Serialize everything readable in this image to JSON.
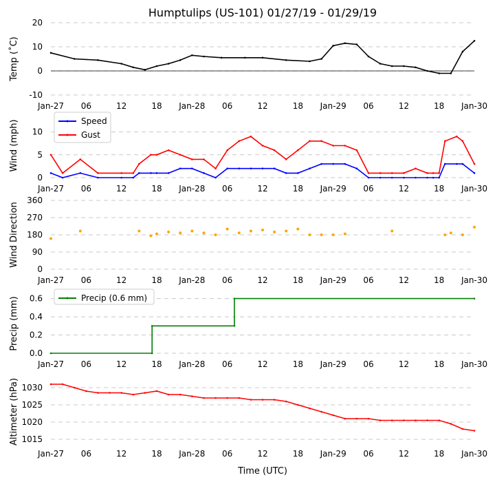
{
  "figure": {
    "title": "Humptulips (US-101) 01/27/19 - 01/29/19",
    "xlabel": "Time (UTC)"
  },
  "chart_data": [
    {
      "id": "temp",
      "type": "line",
      "ylabel": "Temp ($^\\circ$C)",
      "ylabel_display": "Temp (˚C)",
      "ylim": [
        -10,
        20
      ],
      "yticks": [
        -10,
        0,
        10,
        20
      ],
      "zero_line": true,
      "x_hours": [
        0,
        4,
        8,
        12,
        14,
        16,
        18,
        20,
        22,
        24,
        26,
        29,
        33,
        36,
        40,
        44,
        46,
        48,
        50,
        52,
        54,
        56,
        58,
        60,
        62,
        64,
        66,
        68,
        70,
        72
      ],
      "series": [
        {
          "name": "Temp",
          "color": "#000000",
          "values": [
            7.5,
            5.0,
            4.5,
            3.0,
            1.5,
            0.5,
            2.0,
            3.0,
            4.5,
            6.5,
            6.0,
            5.5,
            5.5,
            5.5,
            4.5,
            4.0,
            5.0,
            10.5,
            11.5,
            11.0,
            6.0,
            3.0,
            2.0,
            2.0,
            1.5,
            0.0,
            -1.0,
            -1.0,
            8.0,
            12.5
          ]
        }
      ]
    },
    {
      "id": "wind",
      "type": "line",
      "ylabel": "Wind (mph)",
      "ylim": [
        0,
        14
      ],
      "yticks": [
        0,
        5,
        10
      ],
      "legend": "top-left",
      "x_hours": [
        0,
        2,
        5,
        8,
        12,
        14,
        15,
        17,
        18,
        20,
        22,
        24,
        26,
        28,
        30,
        32,
        34,
        36,
        38,
        40,
        42,
        44,
        46,
        48,
        50,
        52,
        54,
        56,
        58,
        60,
        62,
        64,
        65,
        66,
        67,
        69,
        70,
        72
      ],
      "series": [
        {
          "name": "Speed",
          "color": "#0000ff",
          "values": [
            1,
            0,
            1,
            0,
            0,
            0,
            1,
            1,
            1,
            1,
            2,
            2,
            1,
            0,
            2,
            2,
            2,
            2,
            2,
            1,
            1,
            2,
            3,
            3,
            3,
            2,
            0,
            0,
            0,
            0,
            0,
            0,
            0,
            0,
            3,
            3,
            3,
            1
          ]
        },
        {
          "name": "Gust",
          "color": "#ff0000",
          "values": [
            5,
            1,
            4,
            1,
            1,
            1,
            3,
            5,
            5,
            6,
            5,
            4,
            4,
            2,
            6,
            8,
            9,
            7,
            6,
            4,
            6,
            8,
            8,
            7,
            7,
            6,
            1,
            1,
            1,
            1,
            2,
            1,
            1,
            1,
            8,
            9,
            8,
            3
          ]
        }
      ]
    },
    {
      "id": "direction",
      "type": "scatter",
      "ylabel": "Wind Direction",
      "ylim": [
        0,
        360
      ],
      "yticks": [
        0,
        90,
        180,
        270,
        360
      ],
      "x_hours": [
        0,
        5,
        15,
        17,
        18,
        20,
        22,
        24,
        26,
        28,
        30,
        32,
        34,
        36,
        38,
        40,
        42,
        44,
        46,
        48,
        50,
        58,
        67,
        68,
        70,
        72
      ],
      "series": [
        {
          "name": "Direction",
          "color": "#ffa500",
          "values": [
            160,
            200,
            200,
            175,
            185,
            195,
            190,
            200,
            190,
            180,
            210,
            190,
            200,
            205,
            195,
            200,
            210,
            180,
            180,
            180,
            185,
            200,
            180,
            190,
            180,
            220
          ]
        }
      ]
    },
    {
      "id": "precip",
      "type": "line",
      "ylabel": "Precip (mm)",
      "ylim": [
        0,
        0.65
      ],
      "yticks": [
        0.0,
        0.2,
        0.4,
        0.6
      ],
      "legend": "top-left",
      "x_hours": [
        0,
        17.2,
        17.2,
        31.2,
        31.2,
        72
      ],
      "series": [
        {
          "name": "Precip (0.6 mm)",
          "color": "#008000",
          "values": [
            0.0,
            0.0,
            0.3,
            0.3,
            0.6,
            0.6
          ]
        }
      ]
    },
    {
      "id": "altimeter",
      "type": "line",
      "ylabel": "Altimeter (hPa)",
      "ylim": [
        1014,
        1032
      ],
      "yticks": [
        1015,
        1020,
        1025,
        1030
      ],
      "x_hours": [
        0,
        2,
        4,
        6,
        8,
        10,
        12,
        14,
        16,
        18,
        20,
        22,
        24,
        26,
        28,
        30,
        32,
        34,
        36,
        38,
        40,
        42,
        44,
        46,
        48,
        50,
        52,
        54,
        56,
        58,
        60,
        62,
        64,
        66,
        68,
        70,
        72
      ],
      "series": [
        {
          "name": "Altimeter",
          "color": "#ff0000",
          "values": [
            1031,
            1031,
            1030,
            1029,
            1028.5,
            1028.5,
            1028.5,
            1028,
            1028.5,
            1029,
            1028,
            1028,
            1027.5,
            1027,
            1027,
            1027,
            1027,
            1026.5,
            1026.5,
            1026.5,
            1026,
            1025,
            1024,
            1023,
            1022,
            1021,
            1021,
            1021,
            1020.5,
            1020.5,
            1020.5,
            1020.5,
            1020.5,
            1020.5,
            1019.5,
            1018,
            1017.5
          ]
        }
      ]
    }
  ],
  "xticks": {
    "hours": [
      0,
      6,
      12,
      18,
      24,
      30,
      36,
      42,
      48,
      54,
      60,
      66,
      72
    ],
    "labels": [
      "Jan-27",
      "06",
      "12",
      "18",
      "Jan-28",
      "06",
      "12",
      "18",
      "Jan-29",
      "06",
      "12",
      "18",
      "Jan-30"
    ]
  },
  "styles": {
    "grid_color": "#c8c8c8",
    "zero_line_color": "#000000"
  }
}
